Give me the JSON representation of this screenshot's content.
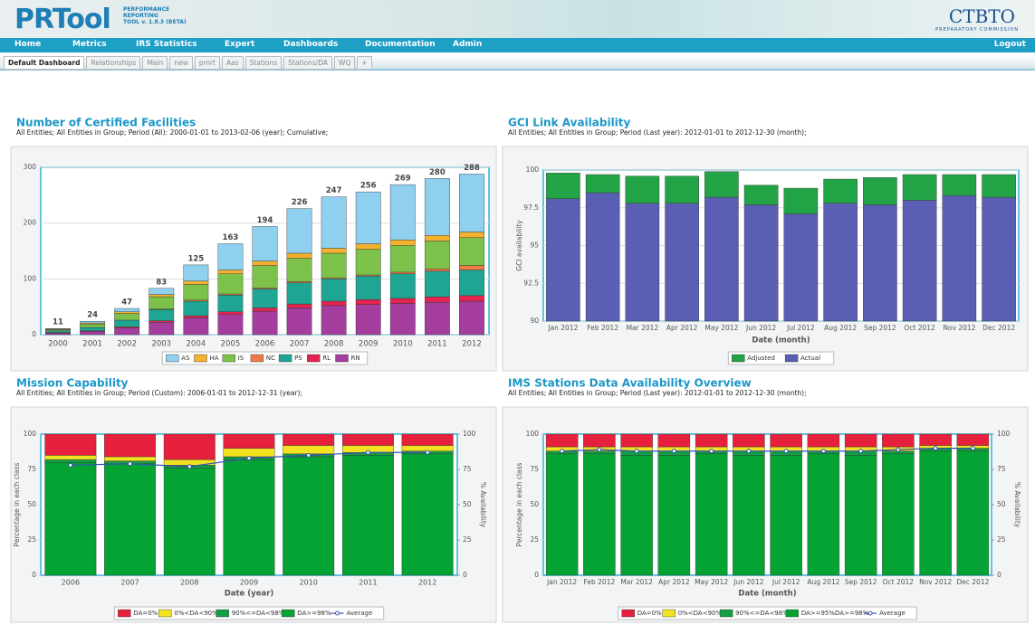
{
  "header": {
    "logo": "PRTool",
    "tagline": [
      "PERFORMANCE",
      "REPORTING",
      "TOOL v. 1.8.3 (BETA)"
    ],
    "brand": "CTBTO",
    "brand_sub": "PREPARATORY COMMISSION"
  },
  "nav": [
    "Home",
    "Metrics",
    "IRS Statistics",
    "Expert",
    "Dashboards",
    "Documentation",
    "Admin"
  ],
  "logout": "Logout",
  "tabs": [
    "Default Dashboard",
    "Relationships",
    "Main",
    "new",
    "pmrt",
    "Aas",
    "Stations",
    "Stations/DA",
    "WQ",
    "+"
  ],
  "chart_data": [
    {
      "type": "bar",
      "title": "Number of Certified Facilities",
      "subtitle": "All Entities; All Entities in Group; Period (All): 2000-01-01 to 2013-02-06 (year); Cumulative;",
      "categories": [
        "2000",
        "2001",
        "2002",
        "2003",
        "2004",
        "2005",
        "2006",
        "2007",
        "2008",
        "2009",
        "2010",
        "2011",
        "2012"
      ],
      "series": [
        {
          "name": "AS",
          "color": "#8fd0ef",
          "values": [
            1,
            3,
            6,
            11,
            29,
            47,
            62,
            80,
            92,
            93,
            99,
            102,
            104
          ]
        },
        {
          "name": "HA",
          "color": "#f3b12e",
          "values": [
            1,
            2,
            3,
            4,
            6,
            7,
            8,
            9,
            9,
            10,
            10,
            10,
            10
          ]
        },
        {
          "name": "IS",
          "color": "#7cc24a",
          "values": [
            2,
            6,
            12,
            22,
            28,
            36,
            40,
            42,
            44,
            46,
            48,
            50,
            50
          ]
        },
        {
          "name": "NC",
          "color": "#f07a45",
          "values": [
            0,
            0,
            0,
            1,
            2,
            2,
            2,
            2,
            2,
            2,
            3,
            4,
            8
          ]
        },
        {
          "name": "PS",
          "color": "#1fa593",
          "values": [
            3,
            6,
            12,
            20,
            26,
            30,
            34,
            38,
            40,
            42,
            44,
            46,
            46
          ]
        },
        {
          "name": "RL",
          "color": "#e4244f",
          "values": [
            1,
            1,
            2,
            3,
            4,
            5,
            6,
            7,
            8,
            9,
            9,
            10,
            10
          ]
        },
        {
          "name": "RN",
          "color": "#a43d9e",
          "values": [
            3,
            6,
            12,
            22,
            30,
            36,
            42,
            48,
            52,
            54,
            56,
            58,
            60
          ]
        }
      ],
      "totals": [
        11,
        24,
        47,
        83,
        125,
        163,
        194,
        226,
        247,
        256,
        269,
        280,
        288
      ],
      "ylim": [
        0,
        300
      ],
      "yticks": [
        0,
        100,
        200,
        300
      ],
      "grid": true
    },
    {
      "type": "bar",
      "title": "GCI Link Availability",
      "subtitle": "All Entities; All Entities in Group; Period (Last year): 2012-01-01 to 2012-12-30 (month);",
      "categories": [
        "Jan 2012",
        "Feb 2012",
        "Mar 2012",
        "Apr 2012",
        "May 2012",
        "Jun 2012",
        "Jul 2012",
        "Aug 2012",
        "Sep 2012",
        "Oct 2012",
        "Nov 2012",
        "Dec 2012"
      ],
      "series": [
        {
          "name": "Adjusted",
          "color": "#22a345",
          "values": [
            1.7,
            1.2,
            1.8,
            1.8,
            1.7,
            1.3,
            1.7,
            1.6,
            1.8,
            1.7,
            1.4,
            1.5
          ]
        },
        {
          "name": "Actual",
          "color": "#5b5fb3",
          "values": [
            98.1,
            98.5,
            97.8,
            97.8,
            98.2,
            97.7,
            97.1,
            97.8,
            97.7,
            98.0,
            98.3,
            98.2
          ]
        }
      ],
      "xlabel": "Date (month)",
      "ylabel": "GCI availability",
      "ylim": [
        90,
        100
      ],
      "yticks": [
        90,
        92.5,
        95,
        97.5,
        100
      ],
      "grid": true
    },
    {
      "type": "bar",
      "title": "Mission Capability",
      "subtitle": "All Entities; All Entities in Group; Period (Custom): 2006-01-01 to 2012-12-31 (year);",
      "categories": [
        "2006",
        "2007",
        "2008",
        "2009",
        "2010",
        "2011",
        "2012"
      ],
      "series": [
        {
          "name": "DA=0%",
          "color": "#e6203d",
          "values": [
            15,
            16,
            18,
            10,
            8,
            8,
            8
          ]
        },
        {
          "name": "0%<DA<90%",
          "color": "#f2e221",
          "values": [
            3,
            3,
            4,
            6,
            6,
            5,
            4
          ]
        },
        {
          "name": "90%<=DA<98%",
          "color": "#129e43",
          "values": [
            2,
            2,
            2,
            2,
            2,
            2,
            2
          ]
        },
        {
          "name": "DA>=98%",
          "color": "#05a334",
          "values": [
            80,
            79,
            76,
            82,
            84,
            85,
            86
          ]
        },
        {
          "name": "Average",
          "color": "#3752b0",
          "type": "line",
          "axis": "y2",
          "values": [
            78,
            79,
            77,
            83,
            85,
            87,
            87
          ]
        }
      ],
      "xlabel": "Date (year)",
      "ylabel": "Percentage in each class",
      "y2label": "% Availability",
      "ylim": [
        0,
        100
      ],
      "yticks": [
        0,
        25,
        50,
        75,
        100
      ],
      "y2lim": [
        0,
        100
      ],
      "y2ticks": [
        0,
        25,
        50,
        75,
        100
      ],
      "grid": false
    },
    {
      "type": "bar",
      "title": "IMS Stations Data Availability Overview",
      "subtitle": "All Entities; All Entities in Group; Period (Last year): 2012-01-01 to 2012-12-30 (month);",
      "categories": [
        "Jan 2012",
        "Feb 2012",
        "Mar 2012",
        "Apr 2012",
        "May 2012",
        "Jun 2012",
        "Jul 2012",
        "Aug 2012",
        "Sep 2012",
        "Oct 2012",
        "Nov 2012",
        "Dec 2012"
      ],
      "series": [
        {
          "name": "DA=0%",
          "color": "#e6203d",
          "values": [
            9,
            9,
            9,
            9,
            9,
            9,
            9,
            9,
            9,
            9,
            8,
            8
          ]
        },
        {
          "name": "0%<DA<90%",
          "color": "#f2e221",
          "values": [
            3,
            3,
            3,
            3,
            3,
            3,
            3,
            3,
            3,
            3,
            2,
            2
          ]
        },
        {
          "name": "90%<=DA<98%",
          "color": "#129e43",
          "values": [
            2,
            2,
            3,
            3,
            2,
            3,
            3,
            2,
            3,
            2,
            2,
            2
          ]
        },
        {
          "name": "DA>=95%DA>=98%",
          "color": "#05a334",
          "values": [
            86,
            86,
            85,
            85,
            86,
            85,
            85,
            86,
            85,
            86,
            88,
            88
          ]
        },
        {
          "name": "Average",
          "color": "#3752b0",
          "type": "line",
          "axis": "y2",
          "values": [
            88,
            89,
            88,
            88,
            88,
            88,
            88,
            88,
            88,
            89,
            90,
            90
          ]
        }
      ],
      "xlabel": "Date (month)",
      "ylabel": "Percentage in each class",
      "y2label": "% Availability",
      "ylim": [
        0,
        100
      ],
      "yticks": [
        0,
        25,
        50,
        75,
        100
      ],
      "y2lim": [
        0,
        100
      ],
      "y2ticks": [
        0,
        25,
        50,
        75,
        100
      ],
      "grid": false
    }
  ]
}
